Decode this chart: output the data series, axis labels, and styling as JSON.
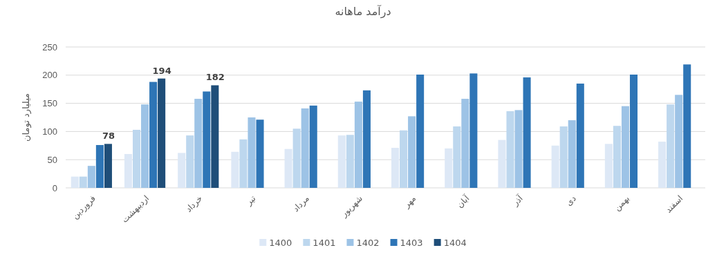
{
  "chart_data": {
    "type": "bar",
    "title": "درآمد ماهانه",
    "ylabel": "میلیارد تومان",
    "categories": [
      "فروردین",
      "اردیبهشت",
      "خرداد",
      "تیر",
      "مرداد",
      "شهریور",
      "مهر",
      "آبان",
      "آذر",
      "دی",
      "بهمن",
      "اسفند"
    ],
    "series": [
      {
        "name": "1400",
        "color": "#dde8f6",
        "values": [
          20,
          60,
          62,
          64,
          69,
          93,
          71,
          70,
          85,
          75,
          78,
          82
        ]
      },
      {
        "name": "1401",
        "color": "#bdd7ee",
        "values": [
          20,
          103,
          93,
          86,
          105,
          94,
          102,
          109,
          136,
          109,
          110,
          148
        ]
      },
      {
        "name": "1402",
        "color": "#9dc3e6",
        "values": [
          39,
          148,
          158,
          125,
          141,
          153,
          127,
          158,
          138,
          120,
          145,
          165
        ]
      },
      {
        "name": "1403",
        "color": "#2e75b6",
        "values": [
          76,
          188,
          171,
          121,
          146,
          173,
          201,
          203,
          196,
          185,
          201,
          219
        ]
      },
      {
        "name": "1404",
        "color": "#1f4e79",
        "values": [
          78,
          194,
          182,
          null,
          null,
          null,
          null,
          null,
          null,
          null,
          null,
          null
        ],
        "value_labels": [
          "78",
          "194",
          "182",
          null,
          null,
          null,
          null,
          null,
          null,
          null,
          null,
          null
        ]
      }
    ],
    "ylim": [
      0,
      250
    ],
    "yticks": [
      0,
      50,
      100,
      150,
      200,
      250
    ],
    "grid": "y",
    "legend": "bottom"
  }
}
